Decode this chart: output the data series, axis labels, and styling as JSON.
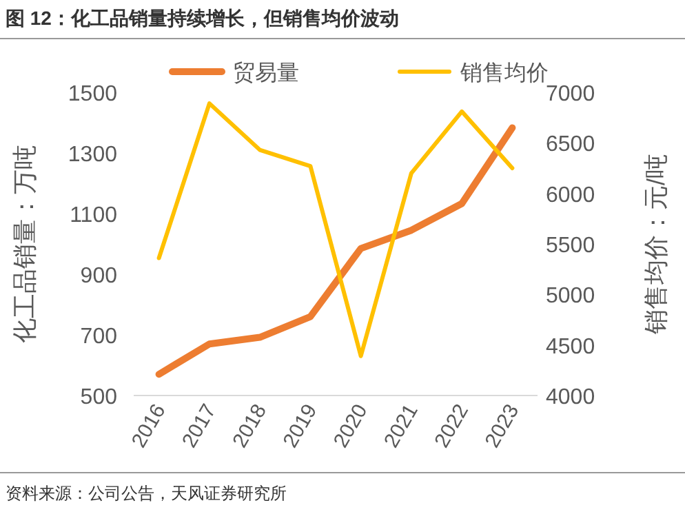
{
  "chart_data": {
    "type": "line",
    "title": "图 12：化工品销量持续增长，但销售均价波动",
    "categories": [
      "2016",
      "2017",
      "2018",
      "2019",
      "2020",
      "2021",
      "2022",
      "2023"
    ],
    "series": [
      {
        "name": "贸易量",
        "color": "#ed7d31",
        "values": [
          570,
          670,
          692,
          760,
          985,
          1045,
          1133,
          1383
        ]
      },
      {
        "name": "销售均价",
        "color": "#ffc000",
        "axis": "y2",
        "values": [
          5360,
          6890,
          6430,
          6270,
          4390,
          6200,
          6810,
          6250
        ]
      }
    ],
    "ylabel": "化工品销量：万吨",
    "y2label": "销售均价：元/吨",
    "ylim": [
      500,
      1500
    ],
    "yticks": [
      500,
      700,
      900,
      1100,
      1300,
      1500
    ],
    "y2lim": [
      4000,
      7000
    ],
    "y2ticks": [
      4000,
      4500,
      5000,
      5500,
      6000,
      6500,
      7000
    ],
    "legend": "top",
    "grid": false,
    "annotations": [
      "资料来源：公司公告，天风证券研究所"
    ]
  }
}
